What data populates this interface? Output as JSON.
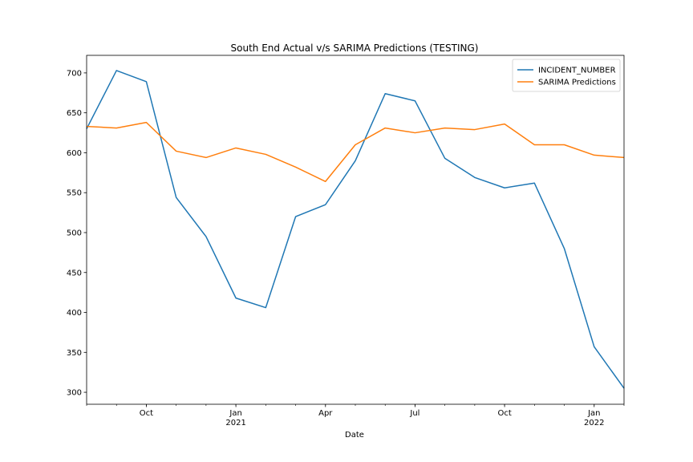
{
  "chart_data": {
    "type": "line",
    "title": "South End Actual v/s SARIMA Predictions (TESTING)",
    "xlabel": "Date",
    "ylabel": "",
    "x": [
      "2020-08",
      "2020-09",
      "2020-10",
      "2020-11",
      "2020-12",
      "2021-01",
      "2021-02",
      "2021-03",
      "2021-04",
      "2021-05",
      "2021-06",
      "2021-07",
      "2021-08",
      "2021-09",
      "2021-10",
      "2021-11",
      "2021-12",
      "2022-01",
      "2022-02"
    ],
    "xlim": [
      "2020-08",
      "2022-02"
    ],
    "ylim": [
      285,
      722
    ],
    "yticks": [
      300,
      350,
      400,
      450,
      500,
      550,
      600,
      650,
      700
    ],
    "xticks": [
      {
        "x": "2020-10",
        "label": "Oct",
        "sub": ""
      },
      {
        "x": "2021-01",
        "label": "Jan",
        "sub": "2021"
      },
      {
        "x": "2021-04",
        "label": "Apr",
        "sub": ""
      },
      {
        "x": "2021-07",
        "label": "Jul",
        "sub": ""
      },
      {
        "x": "2021-10",
        "label": "Oct",
        "sub": ""
      },
      {
        "x": "2022-01",
        "label": "Jan",
        "sub": "2022"
      }
    ],
    "legend_position": "top-right",
    "grid": false,
    "series": [
      {
        "name": "INCIDENT_NUMBER",
        "color": "#1f77b4",
        "values": [
          630,
          703,
          689,
          544,
          495,
          418,
          406,
          520,
          535,
          590,
          674,
          665,
          593,
          569,
          556,
          562,
          480,
          357,
          305
        ]
      },
      {
        "name": "SARIMA Predictions",
        "color": "#ff7f0e",
        "values": [
          633,
          631,
          638,
          602,
          594,
          606,
          598,
          582,
          564,
          610,
          631,
          625,
          631,
          629,
          636,
          610,
          610,
          597,
          594
        ]
      }
    ]
  }
}
